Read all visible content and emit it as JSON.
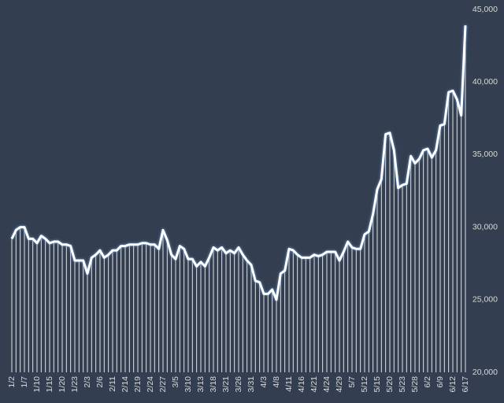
{
  "chart_data": {
    "type": "line",
    "drop_lines": true,
    "categories": [
      "1/2",
      null,
      null,
      "1/7",
      null,
      null,
      "1/10",
      null,
      null,
      "1/15",
      null,
      null,
      "1/20",
      null,
      null,
      "1/23",
      null,
      null,
      "2/3",
      null,
      null,
      "2/6",
      null,
      null,
      "2/11",
      null,
      null,
      "2/14",
      null,
      null,
      "2/19",
      null,
      null,
      "2/24",
      null,
      null,
      "2/27",
      null,
      null,
      "3/5",
      null,
      null,
      "3/10",
      null,
      null,
      "3/13",
      null,
      null,
      "3/18",
      null,
      null,
      "3/21",
      null,
      null,
      "3/26",
      null,
      null,
      "3/31",
      null,
      null,
      "4/3",
      null,
      null,
      "4/8",
      null,
      null,
      "4/11",
      null,
      null,
      "4/16",
      null,
      null,
      "4/21",
      null,
      null,
      "4/24",
      null,
      null,
      "4/29",
      null,
      null,
      "5/7",
      null,
      null,
      "5/12",
      null,
      null,
      "5/15",
      null,
      null,
      "5/20",
      null,
      null,
      "5/23",
      null,
      null,
      "5/28",
      null,
      null,
      "6/2",
      null,
      null,
      "6/9",
      null,
      null,
      "6/12",
      null,
      null,
      "6/17"
    ],
    "values": [
      29200,
      29800,
      30000,
      30000,
      29200,
      29200,
      28900,
      29400,
      29200,
      28900,
      29000,
      29000,
      28800,
      28800,
      28700,
      27700,
      27700,
      27700,
      26800,
      27900,
      28100,
      28400,
      27900,
      28100,
      28400,
      28400,
      28700,
      28700,
      28800,
      28800,
      28800,
      28900,
      28900,
      28800,
      28800,
      28500,
      29800,
      29100,
      28100,
      27800,
      28700,
      28500,
      27800,
      27800,
      27300,
      27600,
      27300,
      27900,
      28600,
      28400,
      28600,
      28200,
      28400,
      28200,
      28600,
      28100,
      27700,
      27400,
      26300,
      26200,
      25400,
      25400,
      25700,
      25000,
      26800,
      27000,
      28500,
      28400,
      28100,
      27900,
      27900,
      27900,
      28100,
      28000,
      28100,
      28300,
      28300,
      28300,
      27700,
      28300,
      29000,
      28600,
      28500,
      28500,
      29500,
      29700,
      30900,
      32600,
      33300,
      36400,
      36500,
      35300,
      32700,
      32900,
      33000,
      34900,
      34400,
      34700,
      35300,
      35400,
      34800,
      35300,
      37000,
      37100,
      39300,
      39400,
      38800,
      37700,
      43900
    ],
    "color": "#ffffff",
    "ylim": [
      20000,
      45000
    ],
    "yticks": [
      {
        "value": 20000,
        "label": "20,000"
      },
      {
        "value": 25000,
        "label": "25,000"
      },
      {
        "value": 30000,
        "label": "30,000"
      },
      {
        "value": 35000,
        "label": "35,000"
      },
      {
        "value": 40000,
        "label": "40,000"
      },
      {
        "value": 45000,
        "label": "45,000"
      }
    ],
    "y_axis_side": "right"
  }
}
